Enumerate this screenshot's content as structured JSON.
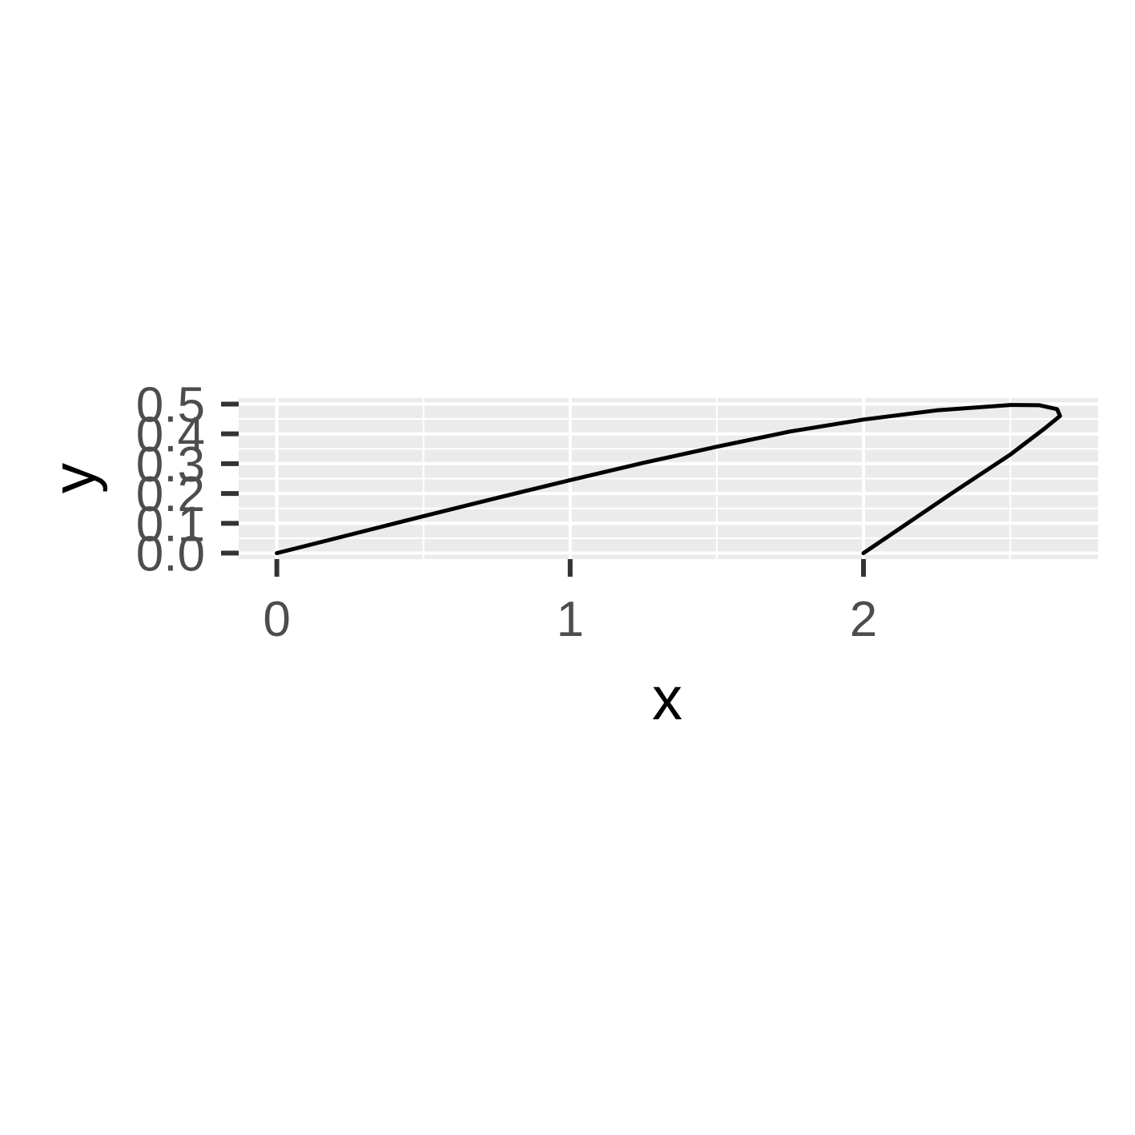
{
  "chart_data": {
    "type": "line",
    "title": "",
    "xlabel": "x",
    "ylabel": "y",
    "xlim": [
      -0.13,
      2.8
    ],
    "ylim": [
      -0.02,
      0.52
    ],
    "x_ticks": [
      0,
      1,
      2
    ],
    "x_tick_labels": [
      "0",
      "1",
      "2"
    ],
    "x_minor_ticks": [
      0.5,
      1.5,
      2.5
    ],
    "y_ticks": [
      0.0,
      0.1,
      0.2,
      0.3,
      0.4,
      0.5
    ],
    "y_tick_labels": [
      "0.0",
      "0.1",
      "0.2",
      "0.3",
      "0.4",
      "0.5"
    ],
    "y_minor_ticks": [
      0.05,
      0.15,
      0.25,
      0.35,
      0.45
    ],
    "grid": true,
    "legend": "none",
    "colors": {
      "panel": "#ebebeb",
      "grid": "#ffffff",
      "line": "#000000",
      "tick_text": "#4d4d4d",
      "ticks": "#333333"
    },
    "series": [
      {
        "points": [
          [
            0.0,
            0.0
          ],
          [
            0.25,
            0.062
          ],
          [
            0.5,
            0.124
          ],
          [
            0.75,
            0.185
          ],
          [
            1.0,
            0.245
          ],
          [
            1.25,
            0.303
          ],
          [
            1.5,
            0.357
          ],
          [
            1.75,
            0.408
          ],
          [
            2.0,
            0.448
          ],
          [
            2.25,
            0.479
          ],
          [
            2.5,
            0.497
          ],
          [
            2.6,
            0.496
          ],
          [
            2.66,
            0.483
          ],
          [
            2.67,
            0.46
          ],
          [
            2.62,
            0.42
          ],
          [
            2.5,
            0.33
          ],
          [
            2.3,
            0.2
          ],
          [
            2.15,
            0.1
          ],
          [
            2.0,
            0.0
          ]
        ]
      }
    ]
  }
}
